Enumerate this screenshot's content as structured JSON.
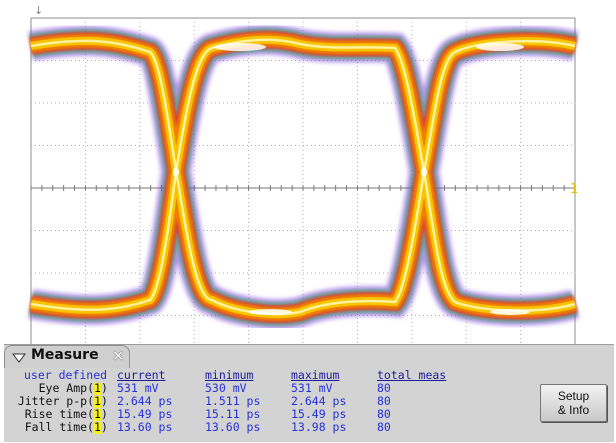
{
  "window": {
    "title": "Measure"
  },
  "measure_panel": {
    "section_label": "user defined",
    "columns": [
      "current",
      "minimum",
      "maximum",
      "total meas"
    ],
    "rows": [
      {
        "label": "Eye Amp(",
        "marker": "1",
        "current": "531 mV",
        "minimum": "530 mV",
        "maximum": "531 mV",
        "total": "80"
      },
      {
        "label": "Jitter p-p(",
        "marker": "1",
        "current": "2.644 ps",
        "minimum": "1.511 ps",
        "maximum": "2.644 ps",
        "total": "80"
      },
      {
        "label": "Rise time(",
        "marker": "1",
        "current": "15.49 ps",
        "minimum": "15.11 ps",
        "maximum": "15.49 ps",
        "total": "80"
      },
      {
        "label": "Fall time(",
        "marker": "1",
        "current": "13.60 ps",
        "minimum": "13.60 ps",
        "maximum": "13.98 ps",
        "total": "80"
      }
    ]
  },
  "buttons": {
    "setup_line1": "Setup",
    "setup_line2": "& Info"
  },
  "trigger_marker": "1",
  "colors": {
    "panel_bg": "#d4d3d3",
    "value_text": "#2431d6",
    "marker_yellow": "#f5f01e",
    "eye_yellow": "#f8c400",
    "eye_orange": "#f08000",
    "eye_red": "#e03030"
  }
}
